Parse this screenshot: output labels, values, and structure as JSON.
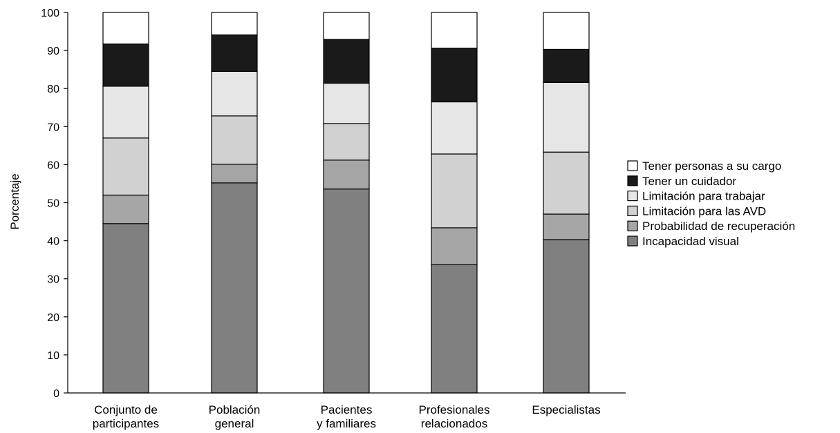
{
  "chart_data": {
    "type": "bar",
    "stacked": true,
    "categories": [
      [
        "Conjunto de",
        "participantes"
      ],
      [
        "Población",
        "general"
      ],
      [
        "Pacientes",
        "y familiares"
      ],
      [
        "Profesionales",
        "relacionados"
      ],
      [
        "Especialistas"
      ]
    ],
    "series": [
      {
        "name": "Incapacidad visual",
        "color": "#808080",
        "values": [
          44.5,
          55.2,
          53.6,
          33.7,
          40.3
        ]
      },
      {
        "name": "Probabilidad de recuperación",
        "color": "#a6a6a6",
        "values": [
          7.5,
          4.9,
          7.6,
          9.7,
          6.7
        ]
      },
      {
        "name": "Limitación para las AVD",
        "color": "#d1d1d1",
        "values": [
          15.0,
          12.7,
          9.6,
          19.4,
          16.3
        ]
      },
      {
        "name": "Limitación para trabajar",
        "color": "#e6e6e6",
        "values": [
          13.6,
          11.7,
          10.6,
          13.7,
          18.3
        ]
      },
      {
        "name": "Tener un cuidador",
        "color": "#1a1a1a",
        "values": [
          11.1,
          9.6,
          11.5,
          14.1,
          8.7
        ]
      },
      {
        "name": "Tener personas a su cargo",
        "color": "#ffffff",
        "values": [
          8.3,
          5.9,
          7.1,
          9.4,
          9.7
        ]
      }
    ],
    "title": "",
    "xlabel": "",
    "ylabel": "Porcentaje",
    "ylim": [
      0,
      100
    ],
    "yticks": [
      0,
      10,
      20,
      30,
      40,
      50,
      60,
      70,
      80,
      90,
      100
    ],
    "grid": false,
    "legend_position": "right",
    "legend_order": [
      5,
      4,
      3,
      2,
      1,
      0
    ]
  }
}
